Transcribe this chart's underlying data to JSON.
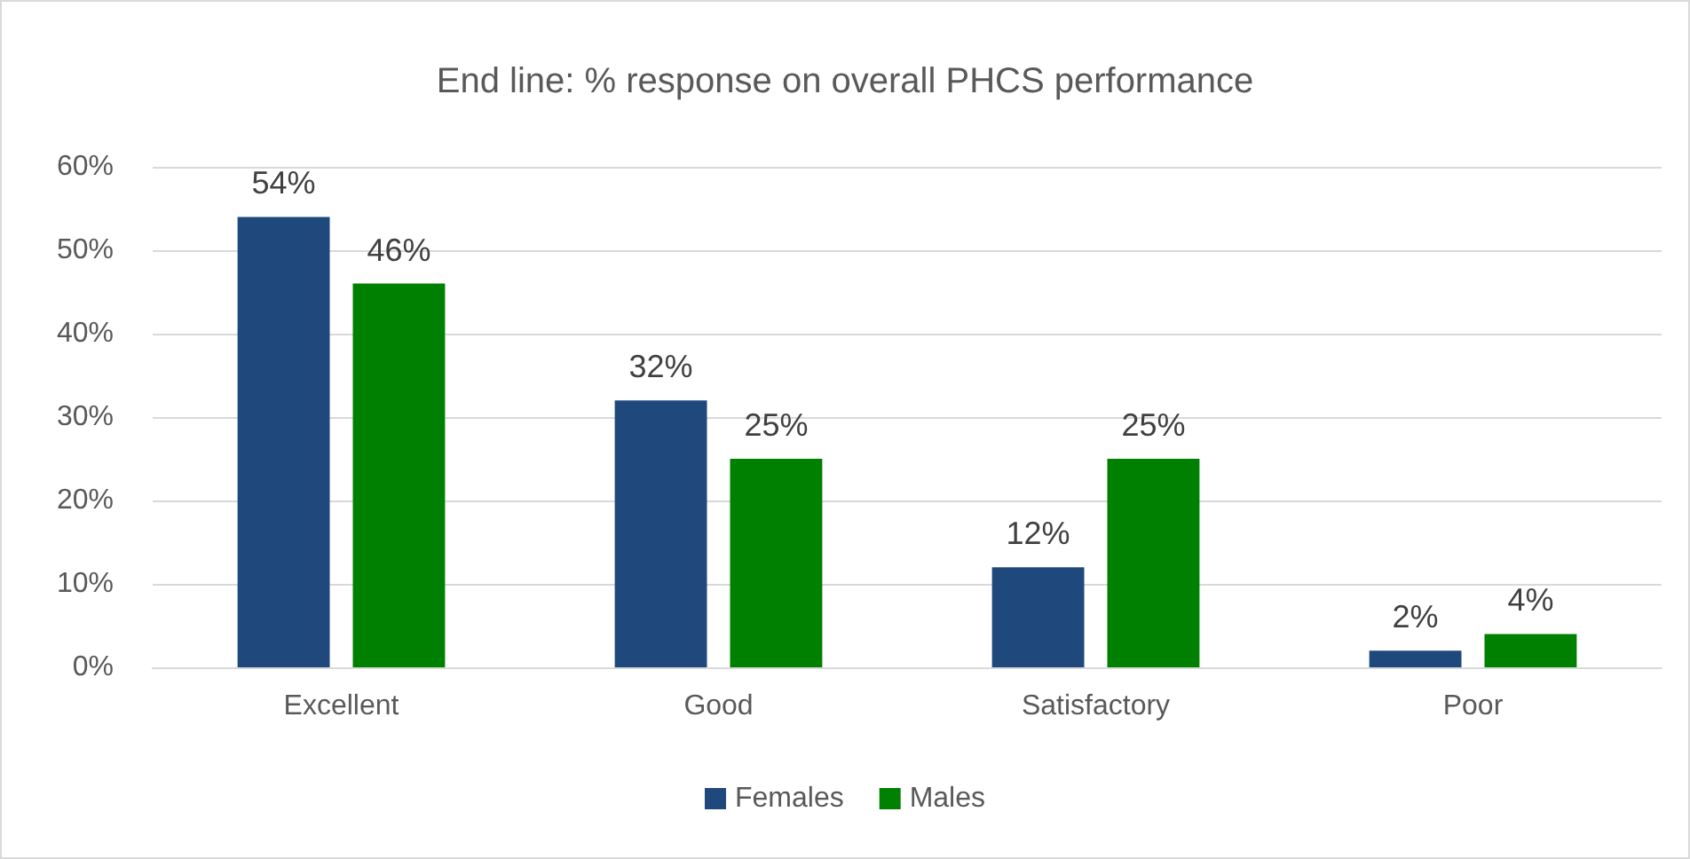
{
  "chart_data": {
    "type": "bar",
    "title": "End line: % response on overall PHCS performance",
    "categories": [
      "Excellent",
      "Good",
      "Satisfactory",
      "Poor"
    ],
    "series": [
      {
        "name": "Females",
        "color": "#1f497d",
        "values": [
          54,
          32,
          12,
          2
        ],
        "value_labels": [
          "54%",
          "32%",
          "12%",
          "2%"
        ]
      },
      {
        "name": "Males",
        "color": "#008000",
        "values": [
          46,
          25,
          25,
          4
        ],
        "value_labels": [
          "46%",
          "25%",
          "25%",
          "4%"
        ]
      }
    ],
    "ylim": [
      0,
      60
    ],
    "yticks": [
      {
        "value": 0,
        "label": "0%"
      },
      {
        "value": 10,
        "label": "10%"
      },
      {
        "value": 20,
        "label": "20%"
      },
      {
        "value": 30,
        "label": "30%"
      },
      {
        "value": 40,
        "label": "40%"
      },
      {
        "value": 50,
        "label": "50%"
      },
      {
        "value": 60,
        "label": "60%"
      }
    ],
    "grid": "y",
    "legend": "bottom"
  }
}
